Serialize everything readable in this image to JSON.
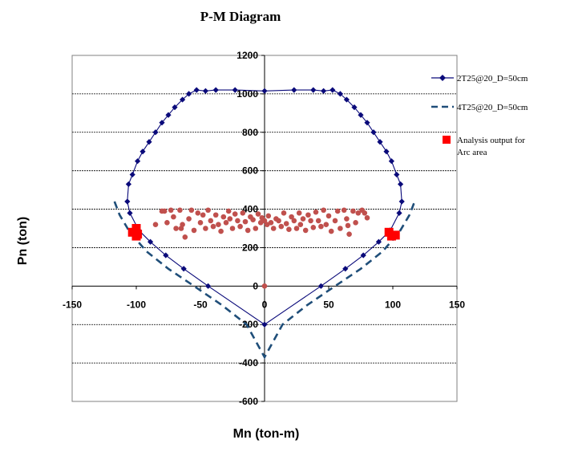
{
  "chart_data": {
    "type": "scatter",
    "title": "P-M Diagram",
    "xlabel": "Mn (ton-m)",
    "ylabel": "Pn (ton)",
    "xlim": [
      -150,
      150
    ],
    "ylim": [
      -600,
      1200
    ],
    "xticks": [
      -150,
      -100,
      -50,
      0,
      50,
      100,
      150
    ],
    "yticks": [
      -600,
      -400,
      -200,
      0,
      200,
      400,
      600,
      800,
      1000,
      1200
    ],
    "grid": "horizontal",
    "legend_position": "right",
    "series": [
      {
        "name": "2T25@20_D=50cm",
        "style": "line-diamond",
        "color": "#0a0a7a",
        "x": [
          0,
          23,
          38,
          46,
          53,
          59,
          64,
          70,
          75,
          80,
          85,
          90,
          95,
          99,
          103,
          106,
          107,
          105,
          98,
          89,
          77,
          63,
          44,
          0,
          -44,
          -63,
          -77,
          -89,
          -98,
          -105,
          -107,
          -106,
          -103,
          -99,
          -95,
          -90,
          -85,
          -80,
          -75,
          -70,
          -64,
          -59,
          -53,
          -46,
          -38,
          -23,
          0
        ],
        "y": [
          1015,
          1020,
          1020,
          1015,
          1020,
          1000,
          970,
          930,
          890,
          850,
          800,
          750,
          700,
          650,
          580,
          530,
          440,
          380,
          290,
          230,
          160,
          90,
          0,
          -200,
          0,
          90,
          160,
          230,
          290,
          380,
          440,
          530,
          580,
          650,
          700,
          750,
          800,
          850,
          890,
          930,
          970,
          1000,
          1020,
          1015,
          1020,
          1020,
          1015
        ]
      },
      {
        "name": "4T25@20_D=50cm",
        "style": "dashed-line",
        "color": "#1f4e79",
        "x": [
          -117,
          -113,
          -105,
          -92,
          -75,
          -55,
          -33,
          -14,
          0,
          14,
          33,
          55,
          75,
          92,
          105,
          113,
          117
        ],
        "y": [
          440,
          370,
          280,
          180,
          90,
          0,
          -100,
          -200,
          -370,
          -200,
          -100,
          0,
          90,
          180,
          280,
          370,
          440
        ]
      },
      {
        "name": "Analysis output for Arc area",
        "style": "square-marker",
        "color": "#ff0000",
        "x": [
          -103,
          -100,
          -99,
          -100,
          97,
          99,
          102
        ],
        "y": [
          280,
          300,
          270,
          260,
          280,
          260,
          265
        ]
      },
      {
        "name": "",
        "style": "circle-marker",
        "color": "#c0504d",
        "x": [
          -78,
          -76,
          -73,
          -71,
          -69,
          -66,
          -64,
          -62,
          -59,
          -57,
          -55,
          -52,
          -50,
          -48,
          -46,
          -44,
          -42,
          -40,
          -38,
          -36,
          -34,
          -32,
          -30,
          -28,
          -27,
          -25,
          -23,
          -21,
          -19,
          -17,
          -15,
          -13,
          -11,
          -9,
          -7,
          -5,
          -3,
          -2,
          0,
          2,
          3,
          5,
          7,
          9,
          11,
          13,
          15,
          17,
          19,
          21,
          23,
          25,
          27,
          28,
          30,
          32,
          34,
          36,
          38,
          40,
          42,
          44,
          46,
          48,
          50,
          52,
          55,
          57,
          59,
          62,
          64,
          66,
          69,
          71,
          73,
          76,
          78,
          -85,
          -80,
          -65,
          65,
          80,
          0
        ],
        "y": [
          390,
          330,
          395,
          360,
          300,
          395,
          320,
          255,
          350,
          395,
          290,
          380,
          330,
          370,
          300,
          395,
          340,
          310,
          370,
          320,
          285,
          360,
          330,
          390,
          350,
          300,
          375,
          340,
          310,
          380,
          335,
          290,
          360,
          345,
          300,
          375,
          330,
          355,
          340,
          320,
          365,
          330,
          300,
          350,
          340,
          310,
          380,
          325,
          295,
          360,
          340,
          300,
          380,
          320,
          350,
          290,
          370,
          340,
          305,
          385,
          340,
          310,
          395,
          320,
          365,
          285,
          340,
          390,
          300,
          395,
          350,
          270,
          390,
          330,
          380,
          395,
          380,
          320,
          390,
          300,
          315,
          355,
          0
        ]
      }
    ]
  },
  "legend": {
    "s1": "2T25@20_D=50cm",
    "s2": "4T25@20_D=50cm",
    "s3_line1": "Analysis output for",
    "s3_line2": "Arc area"
  }
}
